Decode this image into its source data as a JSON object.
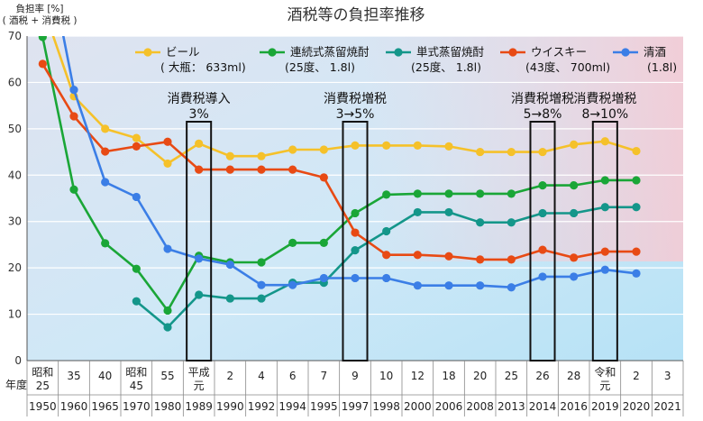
{
  "chart_data": {
    "type": "line",
    "title": "酒税等の負担率推移",
    "ylabel": "負担率 [%]",
    "ylabel_sub": "( 酒税 + 消費税 )",
    "xlabel": "年度",
    "ylim": [
      0,
      70
    ],
    "yticks": [
      0,
      10,
      20,
      30,
      40,
      50,
      60,
      70
    ],
    "categories": [
      {
        "era": "昭和25",
        "year": "1950"
      },
      {
        "era": "35",
        "year": "1960"
      },
      {
        "era": "40",
        "year": "1965"
      },
      {
        "era": "昭和45",
        "year": "1970"
      },
      {
        "era": "55",
        "year": "1980"
      },
      {
        "era": "平成元",
        "year": "1989"
      },
      {
        "era": "2",
        "year": "1990"
      },
      {
        "era": "4",
        "year": "1992"
      },
      {
        "era": "6",
        "year": "1994"
      },
      {
        "era": "7",
        "year": "1995"
      },
      {
        "era": "9",
        "year": "1997"
      },
      {
        "era": "10",
        "year": "1998"
      },
      {
        "era": "12",
        "year": "2000"
      },
      {
        "era": "18",
        "year": "2006"
      },
      {
        "era": "20",
        "year": "2008"
      },
      {
        "era": "25",
        "year": "2013"
      },
      {
        "era": "26",
        "year": "2014"
      },
      {
        "era": "28",
        "year": "2016"
      },
      {
        "era": "令和元",
        "year": "2019"
      },
      {
        "era": "2",
        "year": "2020"
      },
      {
        "era": "3",
        "year": "2021"
      }
    ],
    "series": [
      {
        "name": "ビール",
        "sub": "( 大瓶： 633ml)",
        "color": "#f5c12a",
        "values": [
          null,
          57,
          50,
          48,
          42.5,
          46.8,
          44.1,
          44.1,
          45.5,
          45.5,
          46.4,
          46.4,
          46.4,
          46.2,
          45,
          45,
          45,
          46.6,
          47.3,
          45.2,
          null
        ]
      },
      {
        "name": "連続式蒸留焼酎",
        "sub": "(25度、 1.8l)",
        "color": "#1aa637",
        "values": [
          69.8,
          36.9,
          25.3,
          19.8,
          10.8,
          22.6,
          21.2,
          21.2,
          25.4,
          25.4,
          31.8,
          35.8,
          36,
          36,
          36,
          36,
          37.8,
          37.8,
          38.9,
          38.9,
          null
        ]
      },
      {
        "name": "単式蒸留焼酎",
        "sub": "(25度、 1.8l)",
        "color": "#14968a",
        "values": [
          null,
          null,
          null,
          12.8,
          7.2,
          14.2,
          13.4,
          13.4,
          16.8,
          16.8,
          23.8,
          27.9,
          32,
          32,
          29.8,
          29.8,
          31.8,
          31.8,
          33.1,
          33.1,
          null
        ]
      },
      {
        "name": "ウイスキー",
        "sub": "(43度、 700ml)",
        "color": "#e84a14",
        "values": [
          64,
          52.7,
          45.1,
          46.2,
          47.2,
          41.2,
          41.2,
          41.2,
          41.2,
          39.5,
          27.6,
          22.8,
          22.8,
          22.5,
          21.8,
          21.8,
          23.9,
          22.2,
          23.5,
          23.5,
          null
        ]
      },
      {
        "name": "清酒",
        "sub": "(1.8l)",
        "color": "#3b7ee6",
        "values": [
          null,
          58.4,
          38.5,
          35.3,
          24.1,
          22,
          20.7,
          16.3,
          16.3,
          17.8,
          17.8,
          17.8,
          16.2,
          16.2,
          16.2,
          15.8,
          18.1,
          18.1,
          19.6,
          18.8,
          null
        ]
      }
    ],
    "annotations": [
      {
        "index": 5,
        "line1": "消費税導入",
        "line2": "3%"
      },
      {
        "index": 10,
        "line1": "消費税増税",
        "line2": "3→5%"
      },
      {
        "index": 16,
        "line1": "消費税増税",
        "line2": "5→8%"
      },
      {
        "index": 18,
        "line1": "消費税増税",
        "line2": "8→10%"
      }
    ]
  }
}
